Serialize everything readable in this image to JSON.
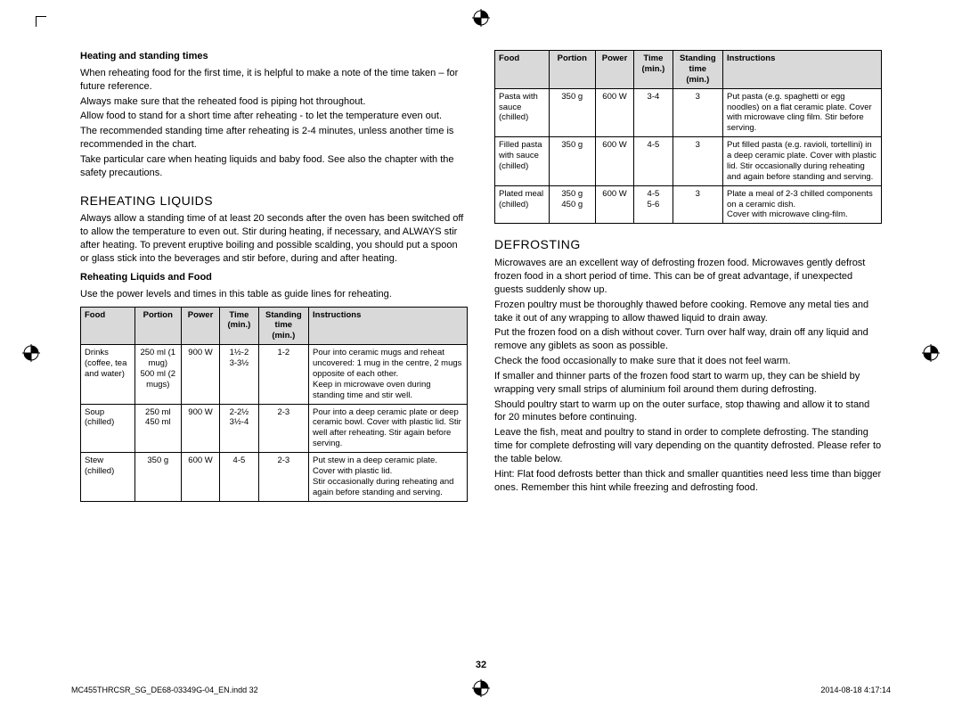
{
  "pageNumber": "32",
  "footer": {
    "left": "MC455THRCSR_SG_DE68-03349G-04_EN.indd   32",
    "right": "2014-08-18   4:17:14"
  },
  "left": {
    "sub1": "Heating and standing times",
    "p1": "When reheating food for the first time, it is helpful to make a note of the time taken – for future reference.",
    "p2": "Always make sure that the reheated food is piping hot throughout.",
    "p3": "Allow food to stand for a short time after reheating - to let the temperature even out.",
    "p4": "The recommended standing time after reheating is 2-4 minutes, unless another time is recommended in the chart.",
    "p5": "Take particular care when heating liquids and baby food. See also the chapter with the safety precautions.",
    "title1": "REHEATING LIQUIDS",
    "p6": "Always allow a standing time of at least 20 seconds after the oven has been switched off to allow the temperature to even out. Stir during heating, if necessary, and ALWAYS stir after heating. To prevent eruptive boiling and possible scalding, you should put a spoon or glass stick into the beverages and stir before, during and after heating.",
    "sub2": "Reheating Liquids and Food",
    "p7": "Use the power levels and times in this table as guide lines for reheating.",
    "headers": [
      "Food",
      "Portion",
      "Power",
      "Time (min.)",
      "Standing time (min.)",
      "Instructions"
    ],
    "rows": [
      {
        "food": "Drinks\n(coffee, tea and water)",
        "portion": "250 ml (1 mug)\n500 ml (2 mugs)",
        "power": "900 W",
        "time": "1½-2\n3-3½",
        "stand": "1-2",
        "instr": "Pour into ceramic mugs and reheat uncovered: 1 mug in the centre, 2 mugs opposite of each other.\nKeep in microwave oven during standing time and stir well."
      },
      {
        "food": "Soup\n(chilled)",
        "portion": "250 ml\n450 ml",
        "power": "900 W",
        "time": "2-2½\n3½-4",
        "stand": "2-3",
        "instr": "Pour into a deep ceramic plate or deep ceramic bowl. Cover with plastic lid. Stir well after reheating. Stir again before serving."
      },
      {
        "food": "Stew\n(chilled)",
        "portion": "350 g",
        "power": "600 W",
        "time": "4-5",
        "stand": "2-3",
        "instr": "Put stew in a deep ceramic plate.\nCover with plastic lid.\nStir occasionally during reheating and again before standing and serving."
      }
    ]
  },
  "right": {
    "headers": [
      "Food",
      "Portion",
      "Power",
      "Time (min.)",
      "Standing time (min.)",
      "Instructions"
    ],
    "rows": [
      {
        "food": "Pasta with sauce\n(chilled)",
        "portion": "350 g",
        "power": "600 W",
        "time": "3-4",
        "stand": "3",
        "instr": "Put pasta (e.g. spaghetti or egg noodles) on a flat ceramic plate. Cover with microwave cling film. Stir before serving."
      },
      {
        "food": "Filled pasta with sauce\n(chilled)",
        "portion": "350 g",
        "power": "600 W",
        "time": "4-5",
        "stand": "3",
        "instr": "Put filled pasta (e.g. ravioli, tortellini) in a deep ceramic plate. Cover with plastic lid. Stir occasionally during reheating and again before standing and serving."
      },
      {
        "food": "Plated meal\n(chilled)",
        "portion": "350 g\n450 g",
        "power": "600 W",
        "time": "4-5\n5-6",
        "stand": "3",
        "instr": "Plate a meal of 2-3 chilled components on a ceramic dish.\nCover with microwave cling-film."
      }
    ],
    "title1": "DEFROSTING",
    "p1": "Microwaves are an excellent way of defrosting frozen food. Microwaves gently defrost frozen food in a short period of time. This can be of great advantage, if unexpected guests suddenly show up.",
    "p2": "Frozen poultry must be thoroughly thawed before cooking. Remove any metal ties and take it out of any wrapping to allow thawed liquid to drain away.",
    "p3": "Put the frozen food on a dish without cover. Turn over half way, drain off any liquid and remove any giblets as soon as possible.",
    "p4": "Check the food occasionally to make sure that it does not feel warm.",
    "p5": "If smaller and thinner parts of the frozen food start to warm up, they can be shield by wrapping very small strips of aluminium foil around them during defrosting.",
    "p6": "Should poultry start to warm up on the outer surface, stop thawing and allow it to stand for 20 minutes before continuing.",
    "p7": "Leave the fish, meat and poultry to stand in order to complete defrosting. The standing time for complete defrosting will vary depending on the quantity defrosted. Please refer to the table below.",
    "p8": "Hint: Flat food defrosts better than thick and smaller quantities need less time than bigger ones. Remember this hint while freezing and defrosting food."
  }
}
